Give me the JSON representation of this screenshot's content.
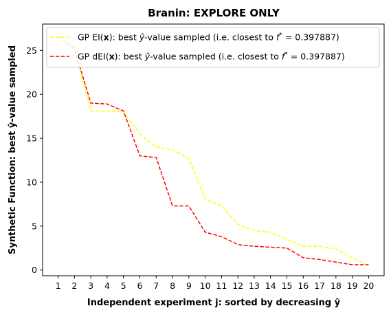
{
  "chart_data": {
    "type": "line",
    "title": "Branin: EXPLORE ONLY",
    "xlabel": "Independent experiment j: sorted by decreasing ŷ",
    "ylabel": "Synthetic Function: best ŷ-value sampled",
    "x": [
      1,
      2,
      3,
      4,
      5,
      6,
      7,
      8,
      9,
      10,
      11,
      12,
      13,
      14,
      15,
      16,
      17,
      18,
      19,
      20
    ],
    "x_ticks": [
      "1",
      "2",
      "3",
      "4",
      "5",
      "6",
      "7",
      "8",
      "9",
      "10",
      "11",
      "12",
      "13",
      "14",
      "15",
      "16",
      "17",
      "18",
      "19",
      "20"
    ],
    "y_ticks": [
      "0",
      "5",
      "10",
      "15",
      "20",
      "25"
    ],
    "xlim": [
      0.05,
      20.95
    ],
    "ylim": [
      -0.65,
      28.0
    ],
    "grid": false,
    "legend_position": "top-left",
    "series": [
      {
        "name": "GP EI(x):   best ŷ-value sampled (i.e. closest to f* = 0.397887)",
        "color": "#ffff00",
        "style": "dashed",
        "values": [
          27.0,
          25.3,
          18.1,
          18.1,
          18.0,
          15.5,
          14.0,
          13.7,
          12.7,
          8.1,
          7.3,
          5.2,
          4.5,
          4.3,
          3.5,
          2.7,
          2.7,
          2.4,
          1.4,
          0.5
        ]
      },
      {
        "name": "GP dEI(x): best ŷ-value sampled (i.e. closest to f* = 0.397887)",
        "color": "#ff0000",
        "style": "dashed",
        "values": [
          26.6,
          25.2,
          19.0,
          18.9,
          18.1,
          13.0,
          12.8,
          7.3,
          7.3,
          4.3,
          3.8,
          2.9,
          2.7,
          2.6,
          2.5,
          1.4,
          1.2,
          0.9,
          0.6,
          0.6
        ]
      }
    ],
    "legend": [
      {
        "pre": "GP EI(",
        "bold": "x",
        "mid": "):   best ",
        "yhat": "ŷ",
        "post1": "-value sampled (i.e. closest to ",
        "f": "f",
        "sup": "*",
        "post2": " = 0.397887)"
      },
      {
        "pre": "GP dEI(",
        "bold": "x",
        "mid": "): best ",
        "yhat": "ŷ",
        "post1": "-value sampled (i.e. closest to ",
        "f": "f",
        "sup": "*",
        "post2": " = 0.397887)"
      }
    ]
  }
}
